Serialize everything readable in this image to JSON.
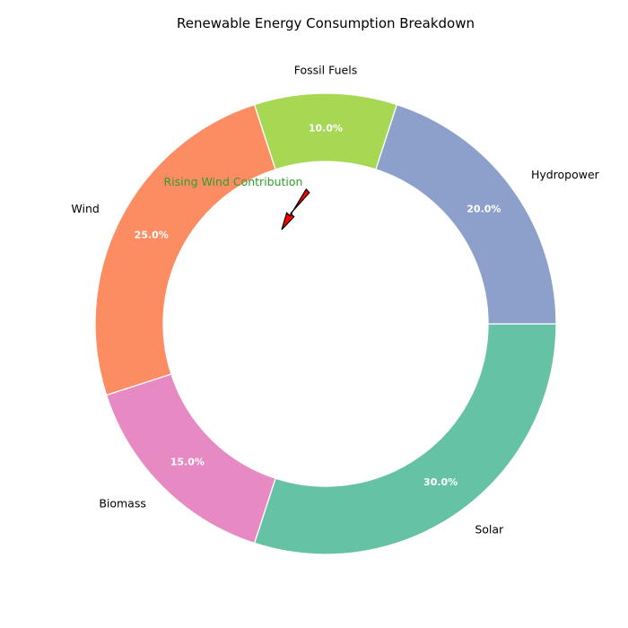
{
  "chart_data": {
    "type": "pie",
    "variant": "donut",
    "title": "Renewable Energy Consumption Breakdown",
    "start_angle_deg": 0,
    "direction": "clockwise",
    "slices": [
      {
        "label": "Solar",
        "value": 30,
        "pct_label": "30.0%",
        "color": "#66c2a5"
      },
      {
        "label": "Biomass",
        "value": 15,
        "pct_label": "15.0%",
        "color": "#e78ac3"
      },
      {
        "label": "Wind",
        "value": 25,
        "pct_label": "25.0%",
        "color": "#fc8d62"
      },
      {
        "label": "Fossil Fuels",
        "value": 10,
        "pct_label": "10.0%",
        "color": "#a6d854"
      },
      {
        "label": "Hydropower",
        "value": 20,
        "pct_label": "20.0%",
        "color": "#8da0cb"
      }
    ],
    "annotation": {
      "text": "Rising Wind Contribution",
      "text_color": "#2ca02c",
      "arrow_color": "#ff0000"
    }
  }
}
